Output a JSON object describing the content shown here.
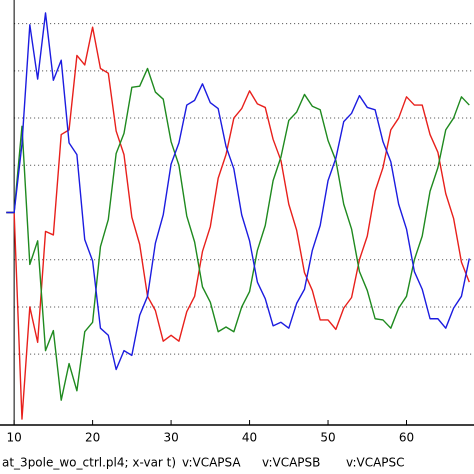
{
  "chart_data": {
    "type": "line",
    "xlabel": "at_3pole_wo_ctrl.pl4; x-var t)",
    "x": [
      9,
      10,
      11,
      12,
      13,
      14,
      15,
      16,
      17,
      18,
      19,
      20,
      21,
      22,
      23,
      24,
      25,
      26,
      27,
      28,
      29,
      30,
      31,
      32,
      33,
      34,
      35,
      36,
      37,
      38,
      39,
      40,
      41,
      42,
      43,
      44,
      45,
      46,
      47,
      48,
      49,
      50,
      51,
      52,
      53,
      54,
      55,
      56,
      57,
      58,
      59,
      60,
      61,
      62,
      63,
      64,
      65,
      66,
      67,
      68
    ],
    "series": [
      {
        "name": "v:VCAPSA",
        "color": "#e8201c",
        "values": [
          0,
          0,
          -1.75,
          -0.8,
          -1.1,
          -0.16,
          -0.19,
          0.66,
          0.7,
          1.33,
          1.25,
          1.57,
          1.22,
          1.18,
          0.69,
          0.49,
          -0.04,
          -0.27,
          -0.71,
          -0.83,
          -1.09,
          -1.04,
          -1.09,
          -0.84,
          -0.71,
          -0.33,
          -0.12,
          0.29,
          0.49,
          0.8,
          0.88,
          1.03,
          0.92,
          0.89,
          0.62,
          0.44,
          0.07,
          -0.15,
          -0.51,
          -0.66,
          -0.91,
          -0.91,
          -0.99,
          -0.81,
          -0.72,
          -0.4,
          -0.2,
          0.18,
          0.38,
          0.7,
          0.8,
          0.98,
          0.91,
          0.91,
          0.66,
          0.51,
          0.16,
          -0.05,
          -0.42,
          -0.59
        ]
      },
      {
        "name": "v:VCAPSB",
        "color": "#1f8a1f",
        "values": [
          0,
          0,
          0.73,
          -0.44,
          -0.24,
          -1.17,
          -1.0,
          -1.59,
          -1.28,
          -1.51,
          -1.01,
          -0.93,
          -0.29,
          -0.06,
          0.5,
          0.67,
          1.06,
          1.07,
          1.22,
          1.02,
          0.96,
          0.6,
          0.4,
          -0.03,
          -0.25,
          -0.63,
          -0.76,
          -1.01,
          -0.97,
          -1.01,
          -0.8,
          -0.67,
          -0.32,
          -0.11,
          0.27,
          0.47,
          0.78,
          0.85,
          1.0,
          0.9,
          0.87,
          0.61,
          0.44,
          0.07,
          -0.14,
          -0.5,
          -0.66,
          -0.9,
          -0.91,
          -0.98,
          -0.81,
          -0.71,
          -0.4,
          -0.2,
          0.18,
          0.38,
          0.7,
          0.8,
          0.98,
          0.91
        ]
      },
      {
        "name": "v:VCAPSC",
        "color": "#1c1ce0",
        "values": [
          0,
          0,
          0.58,
          1.59,
          1.13,
          1.69,
          1.12,
          1.29,
          0.59,
          0.49,
          -0.23,
          -0.41,
          -0.98,
          -1.04,
          -1.33,
          -1.17,
          -1.21,
          -0.87,
          -0.71,
          -0.26,
          -0.02,
          0.41,
          0.59,
          0.91,
          0.95,
          1.09,
          0.93,
          0.88,
          0.56,
          0.37,
          -0.02,
          -0.24,
          -0.59,
          -0.73,
          -0.96,
          -0.93,
          -0.98,
          -0.77,
          -0.65,
          -0.32,
          -0.11,
          0.27,
          0.46,
          0.77,
          0.84,
          0.99,
          0.89,
          0.87,
          0.6,
          0.43,
          0.07,
          -0.14,
          -0.5,
          -0.65,
          -0.9,
          -0.9,
          -0.98,
          -0.81,
          -0.71,
          -0.39
        ]
      }
    ],
    "xlim": [
      8.2,
      68.6
    ],
    "xticks": [
      10,
      20,
      30,
      40,
      50,
      60
    ],
    "ylim": [
      -1.8,
      1.8
    ],
    "yticks": [
      -1.2,
      -0.8,
      -0.4,
      0.4,
      0.8,
      1.2,
      1.6
    ],
    "grid": true
  }
}
